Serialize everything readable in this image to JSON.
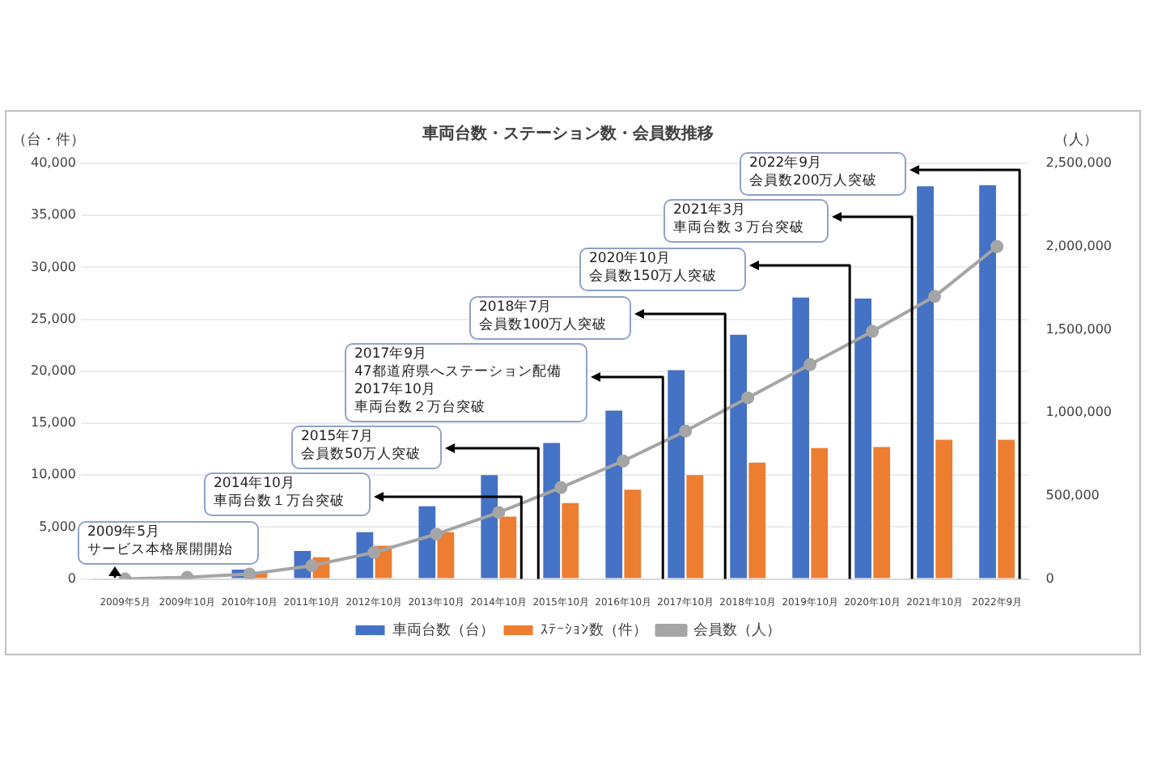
{
  "chart_data": {
    "type": "bar",
    "title": "車両台数・ステーション数・会員数推移",
    "ylabel": "（台・件）",
    "y2label": "（人）",
    "categories": [
      "2009年5月",
      "2009年10月",
      "2010年10月",
      "2011年10月",
      "2012年10月",
      "2013年10月",
      "2014年10月",
      "2015年10月",
      "2016年10月",
      "2017年10月",
      "2018年10月",
      "2019年10月",
      "2020年10月",
      "2021年10月",
      "2022年9月"
    ],
    "series": [
      {
        "name": "車両台数（台）",
        "color": "#4472c4",
        "values": [
          0,
          0,
          900,
          2700,
          4500,
          7000,
          10000,
          13100,
          16200,
          20100,
          23500,
          27100,
          27000,
          37800,
          37900
        ]
      },
      {
        "name": "ｽﾃｰｼｮﾝ数（件）",
        "color": "#ed7d31",
        "values": [
          0,
          0,
          600,
          2100,
          3200,
          4500,
          6000,
          7300,
          8600,
          10000,
          11200,
          12600,
          12700,
          13400,
          13400
        ]
      },
      {
        "name": "会員数（人）",
        "type": "line",
        "axis": "y2",
        "color": "#a5a5a5",
        "values": [
          0,
          10000,
          30000,
          80000,
          160000,
          270000,
          400000,
          550000,
          710000,
          890000,
          1090000,
          1290000,
          1490000,
          1700000,
          2000000
        ]
      }
    ],
    "ylim": [
      0,
      40000
    ],
    "yticks": [
      0,
      {
        "value": 5000,
        "label": "5,000"
      },
      {
        "value": 10000,
        "label": "10,000"
      },
      {
        "value": 15000,
        "label": "15,000"
      },
      {
        "value": 20000,
        "label": "20,000"
      },
      {
        "value": 25000,
        "label": "25,000"
      },
      {
        "value": 30000,
        "label": "30,000"
      },
      {
        "value": 35000,
        "label": "35,000"
      },
      {
        "value": 40000,
        "label": "40,000"
      }
    ],
    "y2lim": [
      0,
      2500000
    ],
    "y2ticks": [
      0,
      {
        "value": 500000,
        "label": "500,000"
      },
      {
        "value": 1000000,
        "label": "1,000,000"
      },
      {
        "value": 1500000,
        "label": "1,500,000"
      },
      {
        "value": 2000000,
        "label": "2,000,000"
      },
      {
        "value": 2500000,
        "label": "2,500,000"
      }
    ],
    "grid": "y",
    "legend": "bottom",
    "marker": "circle",
    "annotations": [
      "2009年5月",
      "サービス本格展開開始",
      "2014年10月",
      "車両台数１万台突破",
      "2015年7月",
      "会員数50万人突破",
      "2017年9月",
      "47都道府県へステーション配備",
      "2017年10月",
      "車両台数２万台突破",
      "2018年7月",
      "会員数100万人突破",
      "2020年10月",
      "会員数150万人突破",
      "2021年3月",
      "車両台数３万台突破",
      "2022年9月",
      "会員数200万人突破"
    ]
  }
}
